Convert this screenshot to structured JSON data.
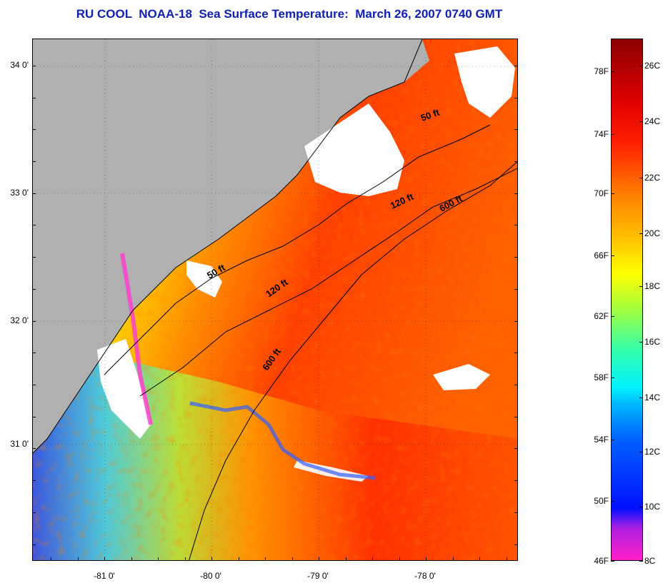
{
  "title": "RU COOL  NOAA-18  Sea Surface Temperature:  March 26, 2007 0740 GMT",
  "latitude_labels": [
    "34 0'",
    "33 0'",
    "32 0'",
    "31 0'"
  ],
  "longitude_labels": [
    "-81 0'",
    "-80 0'",
    "-79 0'",
    "-78 0'"
  ],
  "isobath_labels": [
    {
      "text": "50 ft",
      "id": "n50"
    },
    {
      "text": "120 ft",
      "id": "n120"
    },
    {
      "text": "600 ft",
      "id": "n600"
    },
    {
      "text": "50 ft",
      "id": "s50"
    },
    {
      "text": "120 ft",
      "id": "s120"
    },
    {
      "text": "600 ft",
      "id": "s600"
    }
  ],
  "colorbar": {
    "fahrenheit": [
      "78F",
      "74F",
      "70F",
      "66F",
      "62F",
      "58F",
      "54F",
      "50F",
      "46F"
    ],
    "celsius": [
      "26C",
      "24C",
      "22C",
      "20C",
      "18C",
      "16C",
      "14C",
      "12C",
      "10C",
      "8C"
    ]
  },
  "colors": {
    "land": "#b0b0b0",
    "cloud": "#ffffff",
    "title": "#1020b0"
  }
}
